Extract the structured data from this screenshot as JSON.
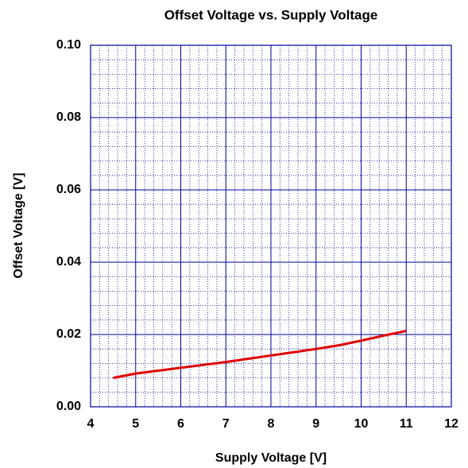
{
  "chart_data": {
    "type": "line",
    "title": "Offset Voltage vs. Supply Voltage",
    "x_label": "Supply Voltage [V]",
    "y_label": "Offset Voltage [V]",
    "xlim": [
      4,
      12
    ],
    "xticks": [
      4,
      5,
      6,
      7,
      8,
      9,
      10,
      11,
      12
    ],
    "ylim": [
      0,
      0.1
    ],
    "yticks": [
      {
        "value": 0,
        "label": "0.00"
      },
      {
        "value": 0.02,
        "label": "0.02"
      },
      {
        "value": 0.04,
        "label": "0.04"
      },
      {
        "value": 0.06,
        "label": "0.06"
      },
      {
        "value": 0.08,
        "label": "0.08"
      },
      {
        "value": 0.1,
        "label": "0.10"
      }
    ],
    "grid": true,
    "grid_color": "#0000a0",
    "x": [
      4.5,
      5,
      6,
      7,
      8,
      9,
      9.5,
      10,
      10.5,
      11
    ],
    "series": [
      {
        "name": "Offset Voltage",
        "color": "#e00000",
        "values": [
          0.008,
          0.0092,
          0.0108,
          0.0124,
          0.0142,
          0.016,
          0.017,
          0.0183,
          0.0197,
          0.021
        ]
      }
    ]
  }
}
